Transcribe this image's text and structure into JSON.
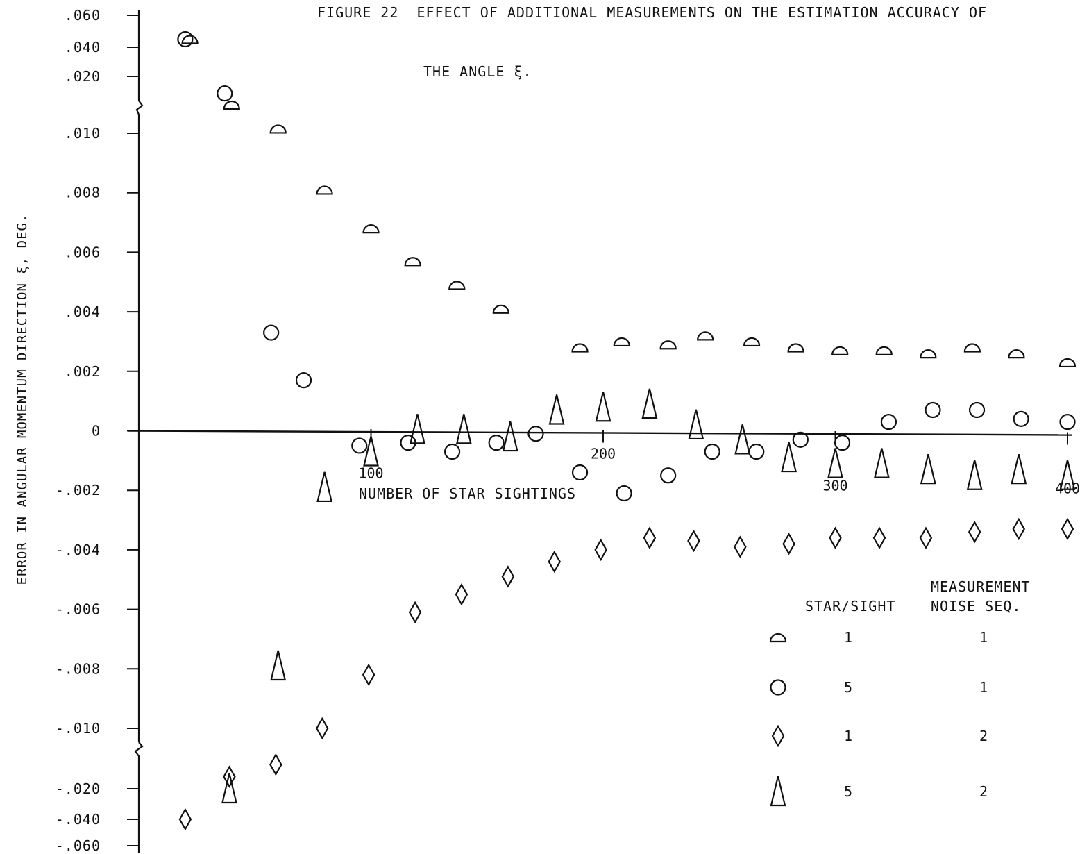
{
  "title_lines": [
    "FIGURE 22  EFFECT OF ADDITIONAL MEASUREMENTS ON THE ESTIMATION ACCURACY OF",
    "THE ANGLE ξ."
  ],
  "chart_data": {
    "type": "scatter",
    "title": "FIGURE 22  EFFECT OF ADDITIONAL MEASUREMENTS ON THE ESTIMATION ACCURACY OF THE ANGLE ξ.",
    "xlabel": "NUMBER OF STAR SIGHTINGS",
    "ylabel": "ERROR IN ANGULAR MOMENTUM DIRECTION  ξ, DEG.",
    "y_scale": "broken (expanded scale beyond ±.010)",
    "xlim": [
      0,
      400
    ],
    "x_ticks": [
      "100",
      "200",
      "300",
      "400"
    ],
    "y_ticks": [
      ".060",
      ".040",
      ".020",
      ".010",
      ".008",
      ".006",
      ".004",
      ".002",
      "0",
      "-.002",
      "-.004",
      "-.006",
      "-.008",
      "-.010",
      "-.020",
      "-.040",
      "-.060"
    ],
    "grid": false,
    "legend": {
      "placement": "bottom-right",
      "headers": [
        "STAR/SIGHT",
        "MEASUREMENT",
        "NOISE SEQ."
      ],
      "rows": [
        {
          "marker": "half-circle",
          "star_sight": "1",
          "noise_seq": "1"
        },
        {
          "marker": "circle",
          "star_sight": "5",
          "noise_seq": "1"
        },
        {
          "marker": "diamond",
          "star_sight": "1",
          "noise_seq": "2"
        },
        {
          "marker": "triangle",
          "star_sight": "5",
          "noise_seq": "2"
        }
      ]
    },
    "series": [
      {
        "marker": "half-circle",
        "star_sight": "1",
        "noise_seq": "1",
        "points": [
          [
            22,
            0.045
          ],
          [
            40,
            0.015
          ],
          [
            60,
            0.0108
          ],
          [
            80,
            0.0081
          ],
          [
            100,
            0.0068
          ],
          [
            118,
            0.0057
          ],
          [
            137,
            0.0049
          ],
          [
            156,
            0.0041
          ],
          [
            190,
            0.0028
          ],
          [
            208,
            0.003
          ],
          [
            228,
            0.0029
          ],
          [
            244,
            0.0032
          ],
          [
            264,
            0.003
          ],
          [
            283,
            0.0028
          ],
          [
            302,
            0.0027
          ],
          [
            321,
            0.0027
          ],
          [
            340,
            0.0026
          ],
          [
            359,
            0.0028
          ],
          [
            378,
            0.0026
          ],
          [
            400,
            0.0023
          ]
        ]
      },
      {
        "marker": "circle",
        "star_sight": "5",
        "noise_seq": "1",
        "points": [
          [
            20,
            0.045
          ],
          [
            37,
            0.017
          ],
          [
            57,
            0.0033
          ],
          [
            71,
            0.0017
          ],
          [
            95,
            -0.0005
          ],
          [
            116,
            -0.0004
          ],
          [
            135,
            -0.0007
          ],
          [
            154,
            -0.0004
          ],
          [
            171,
            -0.0001
          ],
          [
            190,
            -0.0014
          ],
          [
            209,
            -0.0021
          ],
          [
            228,
            -0.0015
          ],
          [
            247,
            -0.0007
          ],
          [
            266,
            -0.0007
          ],
          [
            285,
            -0.0003
          ],
          [
            303,
            -0.0004
          ],
          [
            323,
            0.0003
          ],
          [
            342,
            0.0007
          ],
          [
            361,
            0.0007
          ],
          [
            380,
            0.0004
          ],
          [
            400,
            0.0003
          ]
        ]
      },
      {
        "marker": "diamond",
        "star_sight": "1",
        "noise_seq": "2",
        "points": [
          [
            20,
            -0.04
          ],
          [
            39,
            -0.018
          ],
          [
            59,
            -0.016
          ],
          [
            79,
            -0.01
          ],
          [
            99,
            -0.0082
          ],
          [
            119,
            -0.0061
          ],
          [
            139,
            -0.0055
          ],
          [
            159,
            -0.0049
          ],
          [
            179,
            -0.0044
          ],
          [
            199,
            -0.004
          ],
          [
            220,
            -0.0036
          ],
          [
            239,
            -0.0037
          ],
          [
            259,
            -0.0039
          ],
          [
            280,
            -0.0038
          ],
          [
            300,
            -0.0036
          ],
          [
            319,
            -0.0036
          ],
          [
            339,
            -0.0036
          ],
          [
            360,
            -0.0034
          ],
          [
            379,
            -0.0033
          ],
          [
            400,
            -0.0033
          ]
        ]
      },
      {
        "marker": "triangle",
        "star_sight": "5",
        "noise_seq": "2",
        "points": [
          [
            39,
            -0.02
          ],
          [
            60,
            -0.0079
          ],
          [
            80,
            -0.0019
          ],
          [
            100,
            -0.0007
          ],
          [
            120,
            5e-05
          ],
          [
            140,
            5e-05
          ],
          [
            160,
            -0.0002
          ],
          [
            180,
            0.0007
          ],
          [
            200,
            0.0008
          ],
          [
            220,
            0.0009
          ],
          [
            240,
            0.0002
          ],
          [
            260,
            -0.0003
          ],
          [
            280,
            -0.0009
          ],
          [
            300,
            -0.0011
          ],
          [
            320,
            -0.0011
          ],
          [
            340,
            -0.0013
          ],
          [
            360,
            -0.0015
          ],
          [
            379,
            -0.0013
          ],
          [
            400,
            -0.0015
          ]
        ]
      }
    ]
  }
}
